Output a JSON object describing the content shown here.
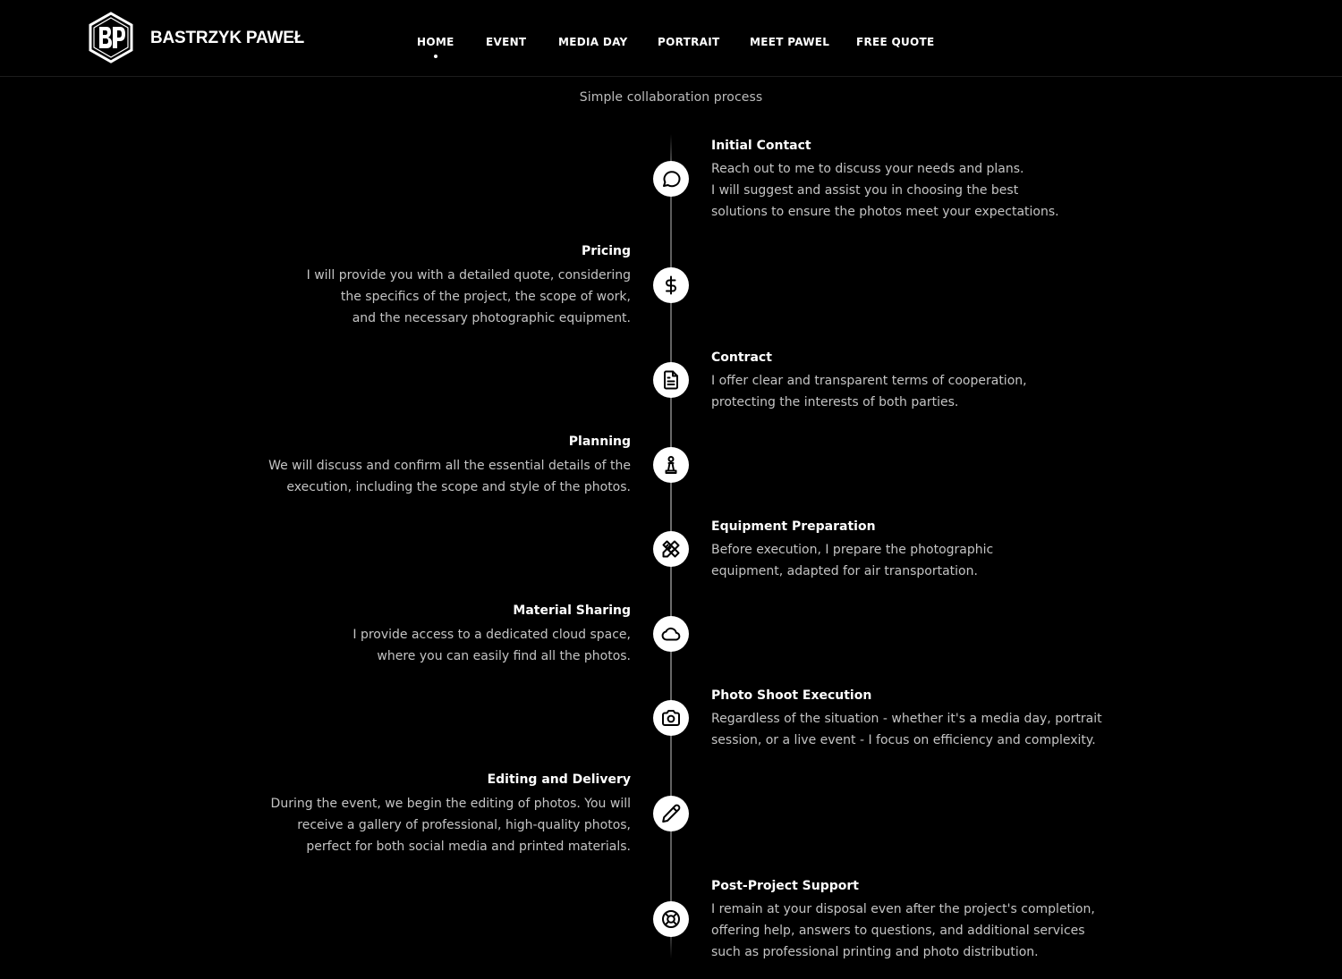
{
  "brand": {
    "name": "BASTRZYK PAWEŁ",
    "logo_letters": "BP"
  },
  "nav": {
    "items": [
      {
        "label": "HOME",
        "active": true
      },
      {
        "label": "EVENT"
      },
      {
        "label": "MEDIA DAY"
      },
      {
        "label": "PORTRAIT"
      },
      {
        "label": "MEET PAWEL"
      },
      {
        "label": "FREE QUOTE"
      }
    ]
  },
  "section": {
    "subtitle": "Simple collaboration process"
  },
  "steps": [
    {
      "icon": "chat-bubble-icon",
      "title": "Initial Contact",
      "lines": [
        "Reach out to me to discuss your needs and plans.",
        "I will suggest and assist you in choosing the best",
        "solutions to ensure the photos meet your expectations."
      ]
    },
    {
      "icon": "dollar-icon",
      "title": "Pricing",
      "lines": [
        "I will provide you with a detailed quote, considering",
        "the specifics of the project, the scope of work,",
        "and the necessary photographic equipment."
      ]
    },
    {
      "icon": "document-icon",
      "title": "Contract",
      "lines": [
        "I offer clear and transparent terms of cooperation,",
        "protecting the interests of both parties."
      ]
    },
    {
      "icon": "chess-pawn-icon",
      "title": "Planning",
      "lines": [
        "We will discuss and confirm all the essential details of the",
        "execution, including the scope and style of the photos."
      ]
    },
    {
      "icon": "pencil-ruler-icon",
      "title": "Equipment Preparation",
      "lines": [
        "Before execution, I prepare the photographic",
        "equipment, adapted for air transportation."
      ]
    },
    {
      "icon": "cloud-icon",
      "title": "Material Sharing",
      "lines": [
        "I provide access to a dedicated cloud space,",
        "where you can easily find all the photos."
      ]
    },
    {
      "icon": "camera-icon",
      "title": "Photo Shoot Execution",
      "lines": [
        "Regardless of the situation - whether it's a media day, portrait",
        "session, or a live event - I focus on efficiency and complexity."
      ]
    },
    {
      "icon": "pencil-icon",
      "title": "Editing and Delivery",
      "lines": [
        "During the event, we begin the editing of photos. You will",
        "receive a gallery of professional, high-quality photos,",
        "perfect for both social media and printed materials."
      ]
    },
    {
      "icon": "lifebuoy-icon",
      "title": "Post-Project Support",
      "lines": [
        "I remain at your disposal even after the project's completion,",
        "offering help, answers to questions, and additional services",
        "such as professional printing and photo distribution."
      ]
    }
  ]
}
